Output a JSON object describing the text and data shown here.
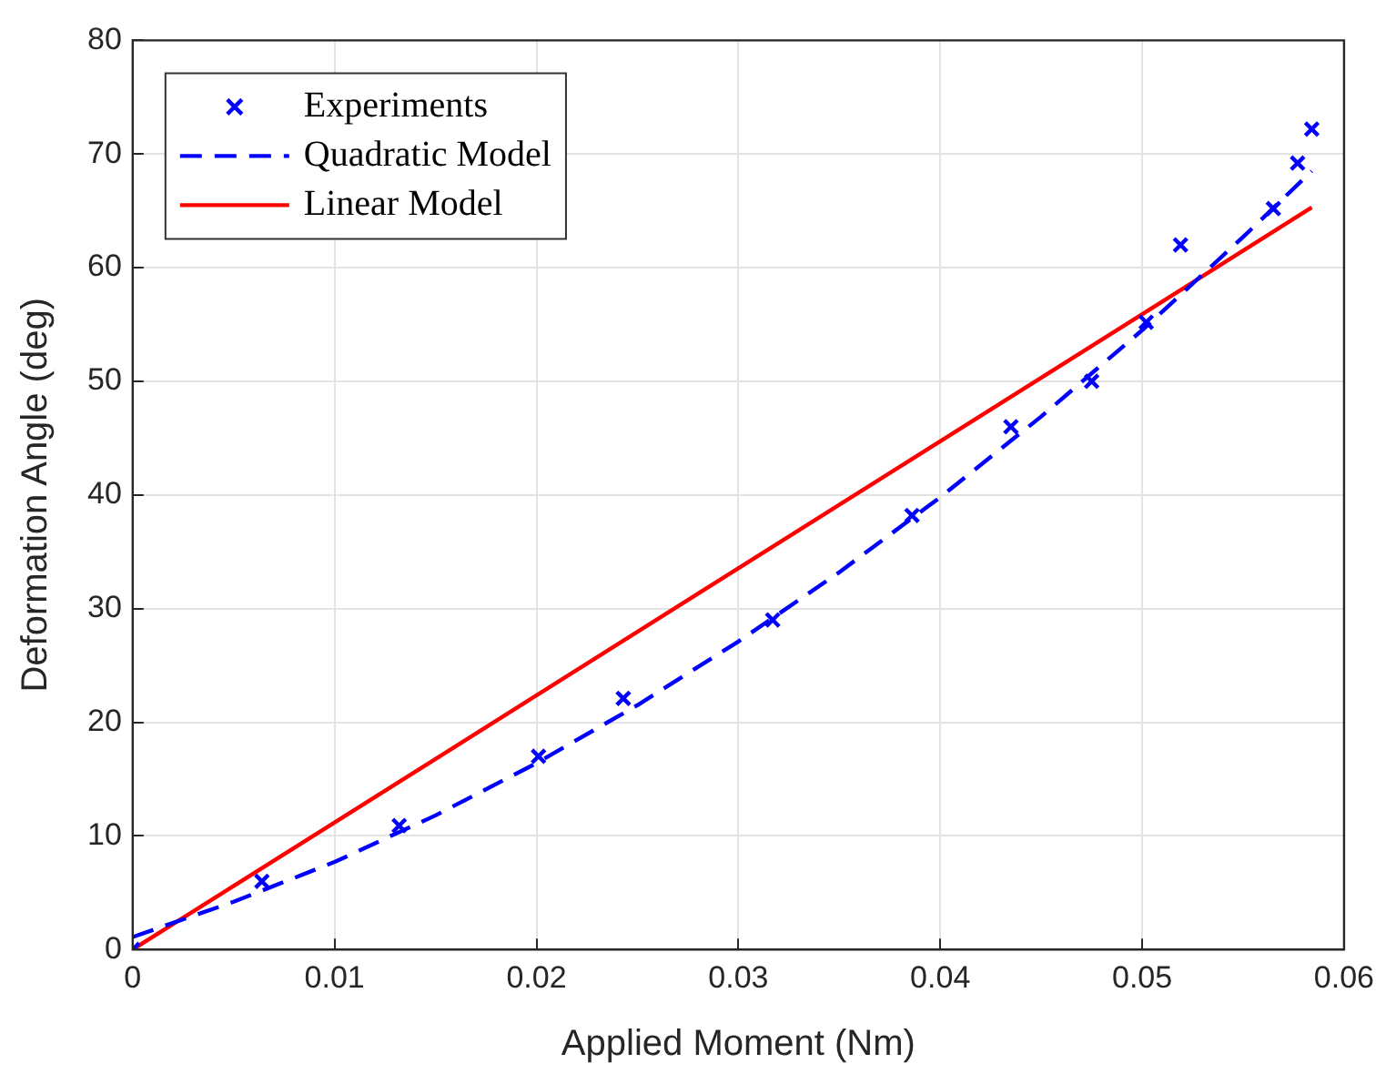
{
  "chart_data": {
    "type": "line",
    "xlabel": "Applied Moment (Nm)",
    "ylabel": "Deformation Angle (deg)",
    "xlim": [
      0,
      0.06
    ],
    "xticks": [
      0,
      0.01,
      0.02,
      0.03,
      0.04,
      0.05,
      0.06
    ],
    "ylim": [
      0,
      80
    ],
    "yticks": [
      0,
      10,
      20,
      30,
      40,
      50,
      60,
      70,
      80
    ],
    "grid": true,
    "legend": "top left",
    "series": [
      {
        "name": "Experiments",
        "type": "scatter",
        "marker": "cross",
        "color": "#0000ff",
        "x": [
          0,
          0.0064,
          0.0132,
          0.0201,
          0.0243,
          0.0317,
          0.0386,
          0.0435,
          0.0475,
          0.0502,
          0.0519,
          0.0565,
          0.0577,
          0.0584
        ],
        "values": [
          0,
          6,
          10.9,
          17,
          22.1,
          29,
          38.2,
          46,
          50,
          55.2,
          62,
          65.2,
          69.2,
          72.2
        ]
      },
      {
        "name": "Quadratic Model",
        "type": "line",
        "line_style": "dashed",
        "marker": "none",
        "color": "#0000ff",
        "x": [
          0,
          0.005,
          0.01,
          0.015,
          0.02,
          0.025,
          0.03,
          0.035,
          0.04,
          0.045,
          0.05,
          0.055,
          0.0584
        ],
        "values": [
          1.1,
          4.2,
          7.7,
          11.8,
          16.4,
          21.5,
          27.1,
          33.2,
          39.8,
          46.9,
          54.5,
          62.7,
          68.5
        ]
      },
      {
        "name": "Linear Model",
        "type": "line",
        "line_style": "solid",
        "marker": "none",
        "color": "#ff0000",
        "x": [
          0,
          0.0584
        ],
        "values": [
          0,
          65.3
        ]
      }
    ]
  }
}
